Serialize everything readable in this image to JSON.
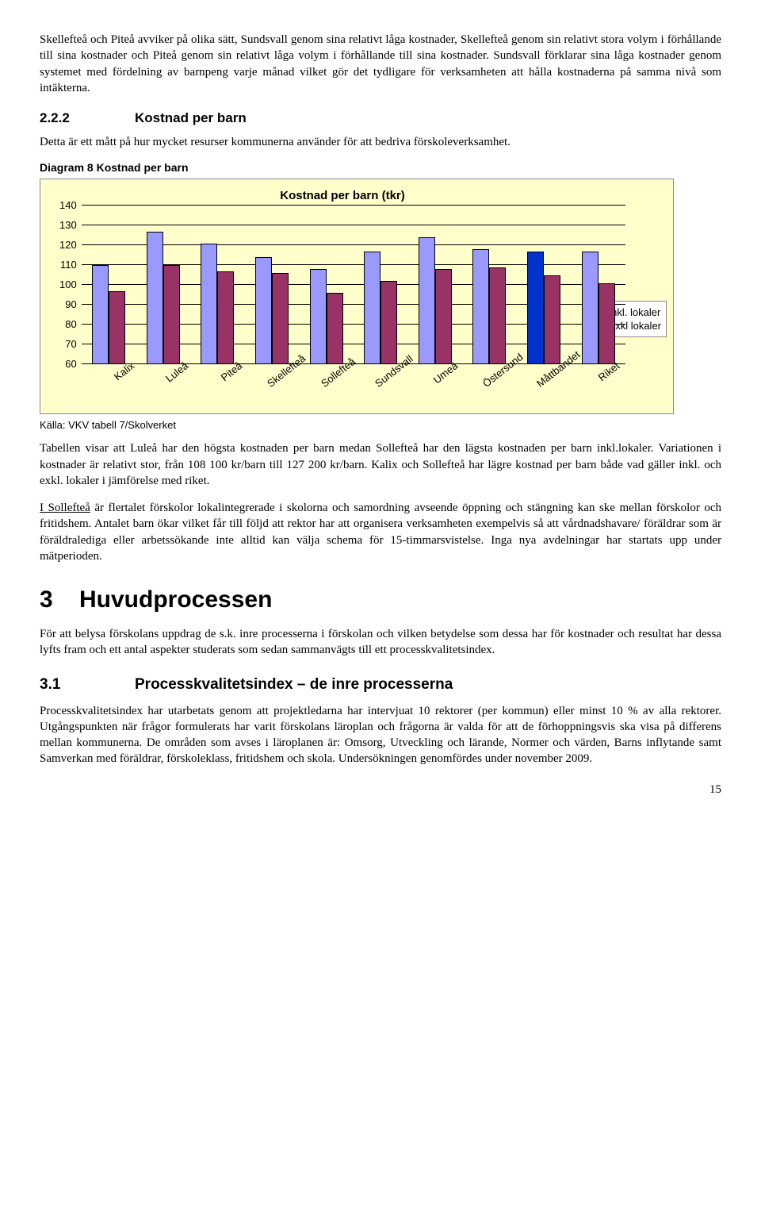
{
  "para_intro": "Skellefteå och Piteå avviker på olika sätt, Sundsvall genom sina relativt låga kostnader, Skellefteå genom sin relativt stora volym i förhållande till sina kostnader och Piteå genom sin relativt låga volym i förhållande till sina kostnader. Sundsvall förklarar sina låga kostnader genom systemet med fördelning av barnpeng varje månad vilket gör det tydligare för verksamheten att hålla kostnaderna på samma nivå som intäkterna.",
  "sec222_num": "2.2.2",
  "sec222_title": "Kostnad per barn",
  "sec222_para": "Detta är ett mått på hur mycket resurser kommunerna använder för att bedriva förskoleverksamhet.",
  "diagram8_label": "Diagram 8 Kostnad per barn",
  "chart": {
    "title": "Kostnad per barn (tkr)",
    "ymin": 60,
    "ymax": 140,
    "ystep": 10,
    "categories": [
      "Kalix",
      "Luleå",
      "Piteå",
      "Skellefteå",
      "Sollefteå",
      "Sundsvall",
      "Umeå",
      "Östersund",
      "Måttbandet",
      "Riket"
    ],
    "series": [
      {
        "name": "Inkl. lokaler",
        "color": "#9999ff",
        "values": [
          110,
          127,
          121,
          114,
          108,
          117,
          124,
          118,
          117,
          117
        ]
      },
      {
        "name": "Exkl lokaler",
        "color": "#993366",
        "values": [
          97,
          110,
          107,
          106,
          96,
          102,
          108,
          109,
          105,
          101
        ]
      }
    ],
    "highlight_index": 8,
    "highlight_color": "#0033cc",
    "background": "#ffffcc",
    "gridline_color": "#000000"
  },
  "source": "Källa: VKV tabell 7/Skolverket",
  "para_table": "Tabellen visar att Luleå har den högsta kostnaden per barn medan Sollefteå har den lägsta kostnaden per barn inkl.lokaler. Variationen i kostnader är relativt stor, från 108 100 kr/barn till 127 200 kr/barn. Kalix och Sollefteå har lägre kostnad per barn både vad gäller inkl. och exkl. lokaler i jämförelse med riket.",
  "para_soll_lead": "I Sollefteå",
  "para_soll_rest": " är flertalet förskolor lokalintegrerade i skolorna och samordning avseende öppning och stängning kan ske mellan förskolor och fritidshem. Antalet barn ökar vilket får till följd att rektor har att organisera verksamheten exempelvis så att vårdnadshavare/ föräldrar som är föräldralediga eller arbetssökande inte alltid kan välja schema för 15-timmarsvistelse. Inga nya avdelningar har startats upp under mätperioden.",
  "sec3_num": "3",
  "sec3_title": "Huvudprocessen",
  "sec3_para": "För att belysa förskolans uppdrag de s.k. inre processerna i förskolan och vilken betydelse som dessa har för kostnader och resultat har dessa lyfts fram och ett antal aspekter studerats som sedan sammanvägts till ett processkvalitetsindex.",
  "sec31_num": "3.1",
  "sec31_title": "Processkvalitetsindex – de inre processerna",
  "sec31_para": "Processkvalitetsindex har utarbetats genom att projektledarna har intervjuat 10 rektorer (per kommun) eller minst 10 % av alla rektorer. Utgångspunkten när frågor formulerats har varit förskolans läroplan och frågorna är valda för att de förhoppningsvis ska visa på differens mellan kommunerna. De områden som avses i läroplanen är: Omsorg, Utveckling och lärande, Normer och värden, Barns inflytande samt Samverkan med föräldrar, förskoleklass, fritidshem och skola. Undersökningen genomfördes under november 2009.",
  "page_number": "15"
}
